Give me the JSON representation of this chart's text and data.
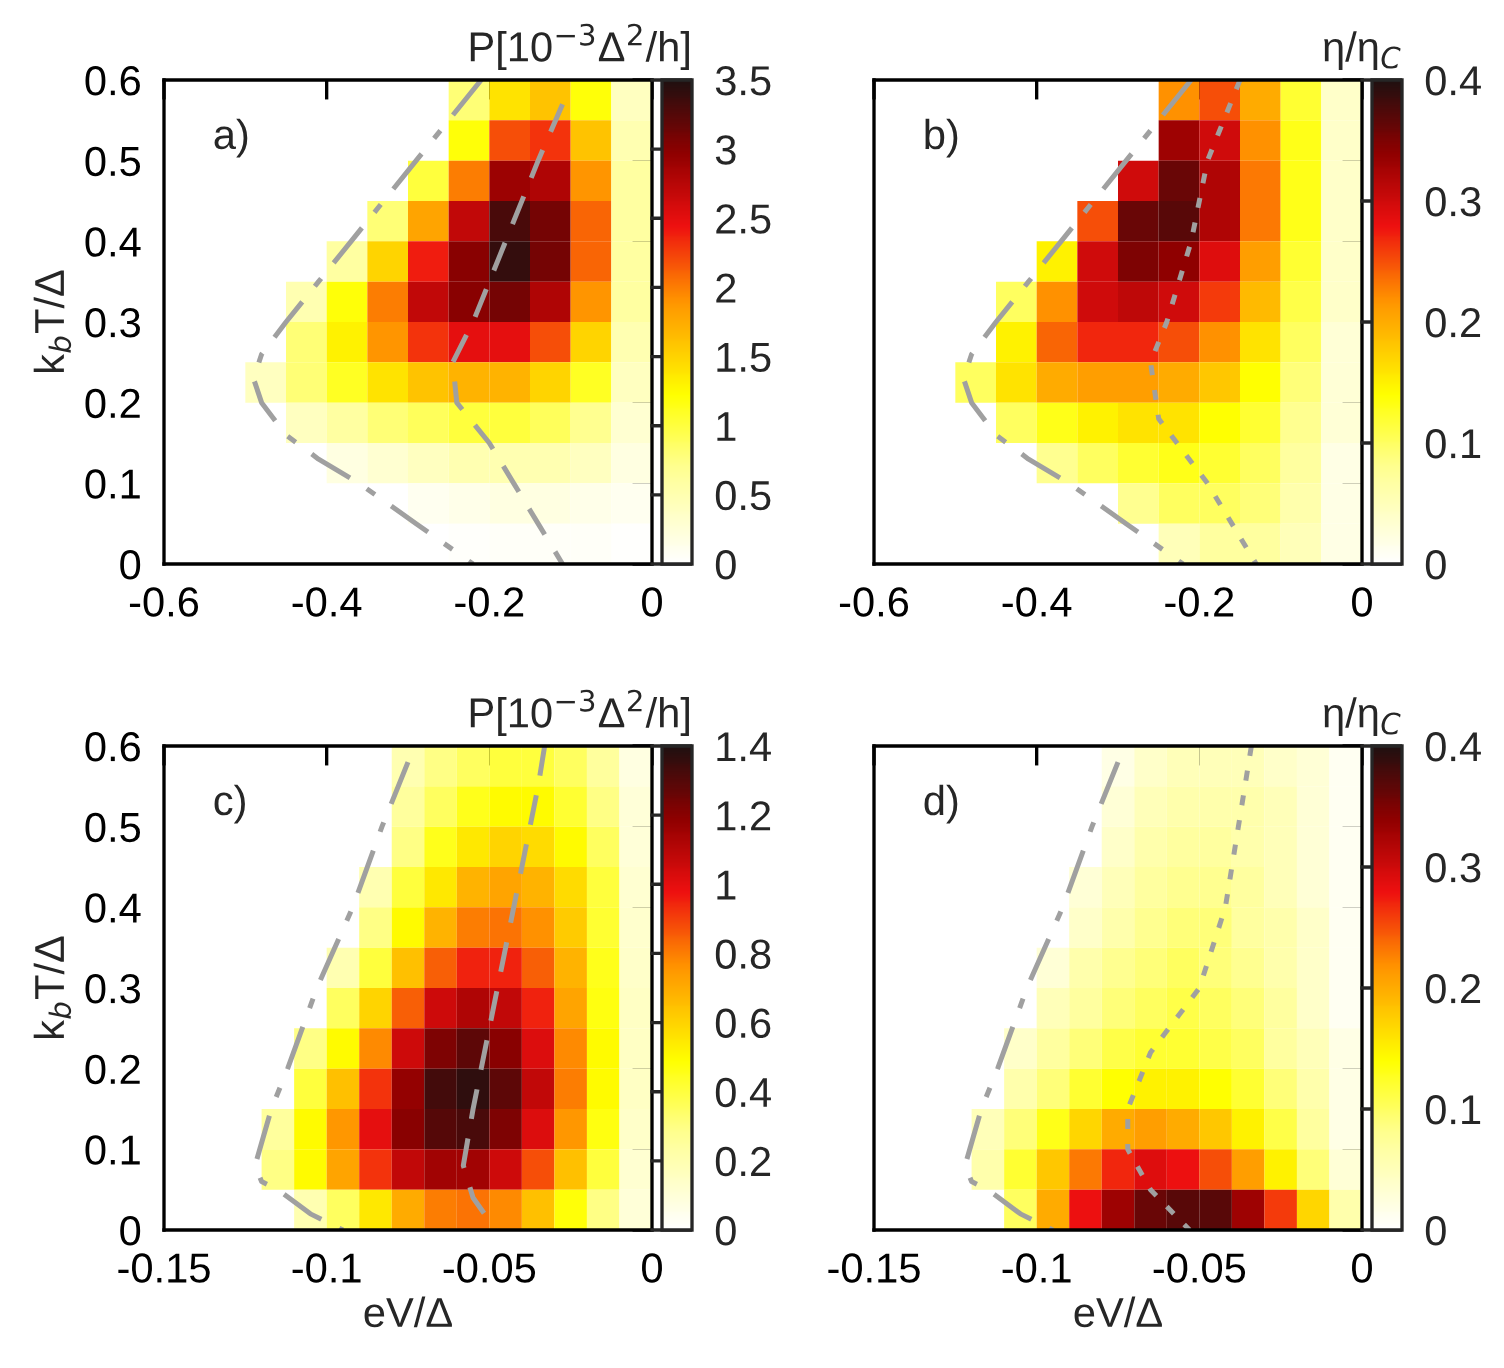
{
  "chart_data": [
    {
      "type": "heatmap",
      "annotations": [
        "a)"
      ],
      "ylabel": "k$_{b}$T/Δ",
      "clabel": "P[10$^{−3}$Δ$^{2}$/h]",
      "x": [
        -0.575,
        -0.525,
        -0.475,
        -0.425,
        -0.375,
        -0.325,
        -0.275,
        -0.225,
        -0.175,
        -0.125,
        -0.075,
        -0.025
      ],
      "y": [
        0.575,
        0.525,
        0.475,
        0.425,
        0.375,
        0.325,
        0.275,
        0.225,
        0.175,
        0.125,
        0.075,
        0.025
      ],
      "cells": [
        [
          null,
          null,
          null,
          null,
          null,
          null,
          null,
          0.8,
          1.4,
          1.6,
          1.2,
          0.4
        ],
        [
          null,
          null,
          null,
          null,
          null,
          null,
          null,
          1.2,
          2.2,
          2.3,
          1.6,
          0.5
        ],
        [
          null,
          null,
          null,
          null,
          null,
          null,
          1.0,
          2.0,
          2.9,
          2.8,
          1.9,
          0.6
        ],
        [
          null,
          null,
          null,
          null,
          null,
          0.8,
          1.8,
          2.7,
          3.3,
          3.1,
          2.1,
          0.6
        ],
        [
          null,
          null,
          null,
          null,
          0.6,
          1.5,
          2.4,
          3.0,
          3.4,
          3.1,
          2.1,
          0.6
        ],
        [
          null,
          null,
          null,
          0.5,
          1.2,
          2.0,
          2.7,
          3.0,
          3.1,
          2.8,
          1.9,
          0.6
        ],
        [
          null,
          null,
          null,
          0.8,
          1.3,
          1.9,
          2.3,
          2.5,
          2.5,
          2.2,
          1.5,
          0.5
        ],
        [
          null,
          null,
          0.4,
          0.8,
          1.1,
          1.4,
          1.6,
          1.7,
          1.7,
          1.5,
          1.1,
          0.4
        ],
        [
          null,
          null,
          null,
          0.4,
          0.6,
          0.8,
          0.9,
          1.0,
          1.0,
          0.9,
          0.7,
          0.3
        ],
        [
          null,
          null,
          null,
          null,
          0.2,
          0.3,
          0.4,
          0.5,
          0.5,
          0.5,
          0.4,
          0.2
        ],
        [
          null,
          null,
          null,
          null,
          null,
          null,
          0.1,
          0.15,
          0.2,
          0.2,
          0.15,
          0.1
        ],
        [
          null,
          null,
          null,
          null,
          null,
          null,
          null,
          0.03,
          0.05,
          0.05,
          0.05,
          0.02
        ]
      ],
      "clim": [
        0,
        3.5
      ],
      "cticks": [
        0,
        0.5,
        1,
        1.5,
        2,
        2.5,
        3,
        3.5
      ],
      "xlim": [
        -0.6,
        0
      ],
      "xticks": [
        -0.6,
        -0.4,
        -0.2,
        0
      ],
      "ylim": [
        0,
        0.6
      ],
      "yticks": [
        0,
        0.1,
        0.2,
        0.3,
        0.4,
        0.5,
        0.6
      ],
      "series": [
        {
          "type": "line",
          "color": "#a0a0a0",
          "line_style": "dashdot",
          "x": [
            -0.21,
            -0.25,
            -0.29,
            -0.33,
            -0.37,
            -0.41,
            -0.45,
            -0.48,
            -0.49,
            -0.48,
            -0.45,
            -0.41,
            -0.36,
            -0.29,
            -0.22
          ],
          "values": [
            0.6,
            0.55,
            0.5,
            0.45,
            0.4,
            0.35,
            0.3,
            0.26,
            0.23,
            0.2,
            0.16,
            0.13,
            0.1,
            0.05,
            0
          ]
        },
        {
          "type": "line",
          "color": "#a0a0a0",
          "line_style": "dashed",
          "x": [
            -0.11,
            -0.14,
            -0.18,
            -0.22,
            -0.245,
            -0.24,
            -0.2,
            -0.17,
            -0.14,
            -0.11
          ],
          "values": [
            0.57,
            0.5,
            0.4,
            0.3,
            0.25,
            0.2,
            0.15,
            0.1,
            0.05,
            0
          ]
        }
      ]
    },
    {
      "type": "heatmap",
      "annotations": [
        "b)"
      ],
      "clabel": "η/η$_{C}$",
      "tick_labels": "x",
      "x": [
        -0.575,
        -0.525,
        -0.475,
        -0.425,
        -0.375,
        -0.325,
        -0.275,
        -0.225,
        -0.175,
        -0.125,
        -0.075,
        -0.025
      ],
      "y": [
        0.575,
        0.525,
        0.475,
        0.425,
        0.375,
        0.325,
        0.275,
        0.225,
        0.175,
        0.125,
        0.075,
        0.025
      ],
      "cells": [
        [
          null,
          null,
          null,
          null,
          null,
          null,
          null,
          0.22,
          0.25,
          0.2,
          0.12,
          0.04
        ],
        [
          null,
          null,
          null,
          null,
          null,
          null,
          null,
          0.33,
          0.3,
          0.22,
          0.13,
          0.04
        ],
        [
          null,
          null,
          null,
          null,
          null,
          null,
          0.3,
          0.36,
          0.32,
          0.23,
          0.13,
          0.04
        ],
        [
          null,
          null,
          null,
          null,
          null,
          0.25,
          0.36,
          0.37,
          0.32,
          0.23,
          0.13,
          0.04
        ],
        [
          null,
          null,
          null,
          null,
          0.15,
          0.3,
          0.35,
          0.34,
          0.29,
          0.21,
          0.12,
          0.04
        ],
        [
          null,
          null,
          null,
          0.1,
          0.22,
          0.3,
          0.31,
          0.3,
          0.26,
          0.19,
          0.11,
          0.04
        ],
        [
          null,
          null,
          null,
          0.15,
          0.24,
          0.27,
          0.27,
          0.25,
          0.22,
          0.16,
          0.1,
          0.03
        ],
        [
          null,
          null,
          0.1,
          0.16,
          0.2,
          0.21,
          0.21,
          0.2,
          0.18,
          0.14,
          0.09,
          0.03
        ],
        [
          null,
          null,
          null,
          0.1,
          0.13,
          0.15,
          0.16,
          0.16,
          0.14,
          0.12,
          0.08,
          0.03
        ],
        [
          null,
          null,
          null,
          null,
          0.08,
          0.1,
          0.12,
          0.13,
          0.12,
          0.1,
          0.07,
          0.02
        ],
        [
          null,
          null,
          null,
          null,
          null,
          null,
          0.08,
          0.1,
          0.1,
          0.09,
          0.06,
          0.02
        ],
        [
          null,
          null,
          null,
          null,
          null,
          null,
          null,
          0.05,
          0.07,
          0.07,
          0.05,
          0.02
        ]
      ],
      "clim": [
        0,
        0.4
      ],
      "cticks": [
        0,
        0.1,
        0.2,
        0.3,
        0.4
      ],
      "xlim": [
        -0.6,
        0
      ],
      "xticks": [
        -0.6,
        -0.4,
        -0.2,
        0
      ],
      "ylim": [
        0,
        0.6
      ],
      "yticks": [
        0,
        0.1,
        0.2,
        0.3,
        0.4,
        0.5,
        0.6
      ],
      "series": [
        {
          "type": "line",
          "color": "#a0a0a0",
          "line_style": "dashdot",
          "x": [
            -0.21,
            -0.25,
            -0.29,
            -0.33,
            -0.37,
            -0.41,
            -0.45,
            -0.48,
            -0.49,
            -0.48,
            -0.45,
            -0.41,
            -0.36,
            -0.29,
            -0.22
          ],
          "values": [
            0.6,
            0.55,
            0.5,
            0.45,
            0.4,
            0.35,
            0.3,
            0.26,
            0.23,
            0.2,
            0.16,
            0.13,
            0.1,
            0.05,
            0
          ]
        },
        {
          "type": "line",
          "color": "#a0a0a0",
          "line_style": "dotted",
          "x": [
            -0.15,
            -0.19,
            -0.21,
            -0.24,
            -0.26,
            -0.25,
            -0.22,
            -0.19,
            -0.16,
            -0.13
          ],
          "values": [
            0.6,
            0.5,
            0.4,
            0.3,
            0.25,
            0.18,
            0.14,
            0.1,
            0.05,
            0
          ]
        }
      ]
    },
    {
      "type": "heatmap",
      "annotations": [
        "c)"
      ],
      "xlabel": "eV/Δ",
      "ylabel": "k$_{b}$T/Δ",
      "clabel": "P[10$^{−3}$Δ$^{2}$/h]",
      "x": [
        -0.145,
        -0.135,
        -0.125,
        -0.115,
        -0.105,
        -0.095,
        -0.085,
        -0.075,
        -0.065,
        -0.055,
        -0.045,
        -0.035,
        -0.025,
        -0.015,
        -0.005
      ],
      "y": [
        0.575,
        0.525,
        0.475,
        0.425,
        0.375,
        0.325,
        0.275,
        0.225,
        0.175,
        0.125,
        0.075,
        0.025
      ],
      "cells": [
        [
          null,
          null,
          null,
          null,
          null,
          null,
          null,
          0.2,
          0.3,
          0.35,
          0.4,
          0.4,
          0.35,
          0.25,
          0.08
        ],
        [
          null,
          null,
          null,
          null,
          null,
          null,
          null,
          0.25,
          0.35,
          0.45,
          0.5,
          0.5,
          0.42,
          0.3,
          0.1
        ],
        [
          null,
          null,
          null,
          null,
          null,
          null,
          null,
          0.3,
          0.45,
          0.55,
          0.6,
          0.58,
          0.5,
          0.35,
          0.1
        ],
        [
          null,
          null,
          null,
          null,
          null,
          null,
          0.2,
          0.4,
          0.55,
          0.68,
          0.72,
          0.68,
          0.58,
          0.4,
          0.12
        ],
        [
          null,
          null,
          null,
          null,
          null,
          null,
          0.3,
          0.5,
          0.68,
          0.8,
          0.82,
          0.77,
          0.62,
          0.42,
          0.13
        ],
        [
          null,
          null,
          null,
          null,
          null,
          0.2,
          0.4,
          0.65,
          0.85,
          0.95,
          0.95,
          0.85,
          0.68,
          0.45,
          0.14
        ],
        [
          null,
          null,
          null,
          null,
          null,
          0.35,
          0.6,
          0.85,
          1.05,
          1.12,
          1.08,
          0.95,
          0.72,
          0.47,
          0.15
        ],
        [
          null,
          null,
          null,
          null,
          0.3,
          0.5,
          0.78,
          1.05,
          1.22,
          1.28,
          1.2,
          1.02,
          0.78,
          0.5,
          0.15
        ],
        [
          null,
          null,
          null,
          null,
          0.4,
          0.65,
          0.92,
          1.18,
          1.33,
          1.37,
          1.28,
          1.08,
          0.8,
          0.5,
          0.15
        ],
        [
          null,
          null,
          null,
          0.25,
          0.5,
          0.75,
          1.0,
          1.2,
          1.3,
          1.32,
          1.22,
          1.02,
          0.75,
          0.47,
          0.14
        ],
        [
          null,
          null,
          null,
          0.3,
          0.5,
          0.72,
          0.92,
          1.08,
          1.15,
          1.15,
          1.05,
          0.88,
          0.65,
          0.4,
          0.12
        ],
        [
          null,
          null,
          null,
          null,
          0.2,
          0.35,
          0.55,
          0.7,
          0.8,
          0.82,
          0.78,
          0.65,
          0.48,
          0.3,
          0.1
        ]
      ],
      "clim": [
        0,
        1.4
      ],
      "cticks": [
        0,
        0.2,
        0.4,
        0.6,
        0.8,
        1,
        1.2,
        1.4
      ],
      "xlim": [
        -0.15,
        0
      ],
      "xticks": [
        -0.15,
        -0.1,
        -0.05,
        0
      ],
      "ylim": [
        0,
        0.6
      ],
      "yticks": [
        0,
        0.1,
        0.2,
        0.3,
        0.4,
        0.5,
        0.6
      ],
      "series": [
        {
          "type": "line",
          "color": "#a0a0a0",
          "line_style": "dashdot",
          "x": [
            -0.075,
            -0.083,
            -0.092,
            -0.103,
            -0.112,
            -0.117,
            -0.122,
            -0.12,
            -0.115,
            -0.105,
            -0.095
          ],
          "values": [
            0.58,
            0.5,
            0.4,
            0.3,
            0.2,
            0.15,
            0.08,
            0.06,
            0.05,
            0.02,
            0
          ]
        },
        {
          "type": "line",
          "color": "#a0a0a0",
          "line_style": "dashed",
          "x": [
            -0.033,
            -0.035,
            -0.04,
            -0.045,
            -0.05,
            -0.055,
            -0.058,
            -0.055,
            -0.048
          ],
          "values": [
            0.6,
            0.55,
            0.45,
            0.35,
            0.25,
            0.15,
            0.08,
            0.04,
            0
          ]
        }
      ]
    },
    {
      "type": "heatmap",
      "annotations": [
        "d)"
      ],
      "xlabel": "eV/Δ",
      "clabel": "η/η$_{C}$",
      "tick_labels": "x",
      "x": [
        -0.145,
        -0.135,
        -0.125,
        -0.115,
        -0.105,
        -0.095,
        -0.085,
        -0.075,
        -0.065,
        -0.055,
        -0.045,
        -0.035,
        -0.025,
        -0.015,
        -0.005
      ],
      "y": [
        0.575,
        0.525,
        0.475,
        0.425,
        0.375,
        0.325,
        0.275,
        0.225,
        0.175,
        0.125,
        0.075,
        0.025
      ],
      "cells": [
        [
          null,
          null,
          null,
          null,
          null,
          null,
          null,
          0.02,
          0.04,
          0.05,
          0.05,
          0.05,
          0.04,
          0.03,
          0.01
        ],
        [
          null,
          null,
          null,
          null,
          null,
          null,
          null,
          0.03,
          0.05,
          0.06,
          0.06,
          0.06,
          0.05,
          0.03,
          0.01
        ],
        [
          null,
          null,
          null,
          null,
          null,
          null,
          null,
          0.04,
          0.06,
          0.07,
          0.07,
          0.06,
          0.05,
          0.03,
          0.01
        ],
        [
          null,
          null,
          null,
          null,
          null,
          null,
          0.03,
          0.05,
          0.07,
          0.08,
          0.08,
          0.07,
          0.05,
          0.03,
          0.01
        ],
        [
          null,
          null,
          null,
          null,
          null,
          null,
          0.04,
          0.06,
          0.08,
          0.09,
          0.09,
          0.07,
          0.06,
          0.04,
          0.01
        ],
        [
          null,
          null,
          null,
          null,
          null,
          0.03,
          0.06,
          0.08,
          0.09,
          0.1,
          0.09,
          0.08,
          0.06,
          0.04,
          0.01
        ],
        [
          null,
          null,
          null,
          null,
          null,
          0.05,
          0.07,
          0.09,
          0.1,
          0.11,
          0.1,
          0.09,
          0.07,
          0.04,
          0.01
        ],
        [
          null,
          null,
          null,
          null,
          0.04,
          0.07,
          0.09,
          0.11,
          0.12,
          0.12,
          0.11,
          0.1,
          0.07,
          0.05,
          0.02
        ],
        [
          null,
          null,
          null,
          null,
          0.06,
          0.09,
          0.12,
          0.14,
          0.15,
          0.15,
          0.14,
          0.12,
          0.09,
          0.06,
          0.02
        ],
        [
          null,
          null,
          null,
          0.05,
          0.09,
          0.13,
          0.17,
          0.2,
          0.21,
          0.2,
          0.18,
          0.15,
          0.11,
          0.07,
          0.02
        ],
        [
          null,
          null,
          null,
          0.06,
          0.12,
          0.18,
          0.23,
          0.27,
          0.29,
          0.28,
          0.25,
          0.21,
          0.15,
          0.09,
          0.03
        ],
        [
          null,
          null,
          null,
          null,
          0.1,
          0.2,
          0.28,
          0.33,
          0.36,
          0.37,
          0.37,
          0.33,
          0.26,
          0.17,
          0.06
        ]
      ],
      "clim": [
        0,
        0.4
      ],
      "cticks": [
        0,
        0.1,
        0.2,
        0.3,
        0.4
      ],
      "xlim": [
        -0.15,
        0
      ],
      "xticks": [
        -0.15,
        -0.1,
        -0.05,
        0
      ],
      "ylim": [
        0,
        0.6
      ],
      "yticks": [
        0,
        0.1,
        0.2,
        0.3,
        0.4,
        0.5,
        0.6
      ],
      "series": [
        {
          "type": "line",
          "color": "#a0a0a0",
          "line_style": "dashdot",
          "x": [
            -0.075,
            -0.083,
            -0.092,
            -0.103,
            -0.112,
            -0.117,
            -0.122,
            -0.12,
            -0.115,
            -0.105,
            -0.095
          ],
          "values": [
            0.58,
            0.5,
            0.4,
            0.3,
            0.2,
            0.15,
            0.08,
            0.06,
            0.05,
            0.02,
            0
          ]
        },
        {
          "type": "line",
          "color": "#a0a0a0",
          "line_style": "dotted",
          "x": [
            -0.034,
            -0.038,
            -0.042,
            -0.05,
            -0.065,
            -0.072,
            -0.072,
            -0.065,
            -0.053
          ],
          "values": [
            0.6,
            0.5,
            0.4,
            0.3,
            0.22,
            0.15,
            0.1,
            0.05,
            0
          ]
        }
      ]
    }
  ]
}
